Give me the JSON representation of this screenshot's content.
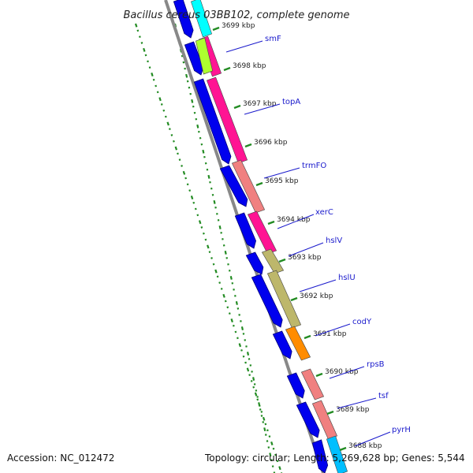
{
  "title": "Bacillus cereus 03BB102, complete genome",
  "footer": {
    "accession": "Accession: NC_012472",
    "summary": "Topology: circular; Length: 5,269,628 bp; Genes: 5,544"
  },
  "colors": {
    "forward_cds": "#0000ee",
    "backbone": "#888888",
    "gc_dots": "#228b22",
    "label_line": "#1a1acc",
    "label_text": "#1a1acc"
  },
  "ticks": [
    "3699 kbp",
    "3698 kbp",
    "3697 kbp",
    "3696 kbp",
    "3695 kbp",
    "3694 kbp",
    "3693 kbp",
    "3692 kbp",
    "3691 kbp",
    "3690 kbp",
    "3689 kbp",
    "3688 kbp"
  ],
  "genes": [
    {
      "name": "smF",
      "color": "#ff1493"
    },
    {
      "name": "topA",
      "color": "#ff1493"
    },
    {
      "name": "trmFO",
      "color": "#f08080"
    },
    {
      "name": "xerC",
      "color": "#ff1493"
    },
    {
      "name": "hslV",
      "color": "#bdb76b"
    },
    {
      "name": "hslU",
      "color": "#bdb76b"
    },
    {
      "name": "codY",
      "color": "#ff8c00"
    },
    {
      "name": "rpsB",
      "color": "#f08080"
    },
    {
      "name": "tsf",
      "color": "#f08080"
    },
    {
      "name": "pyrH",
      "color": "#00bfff"
    }
  ]
}
